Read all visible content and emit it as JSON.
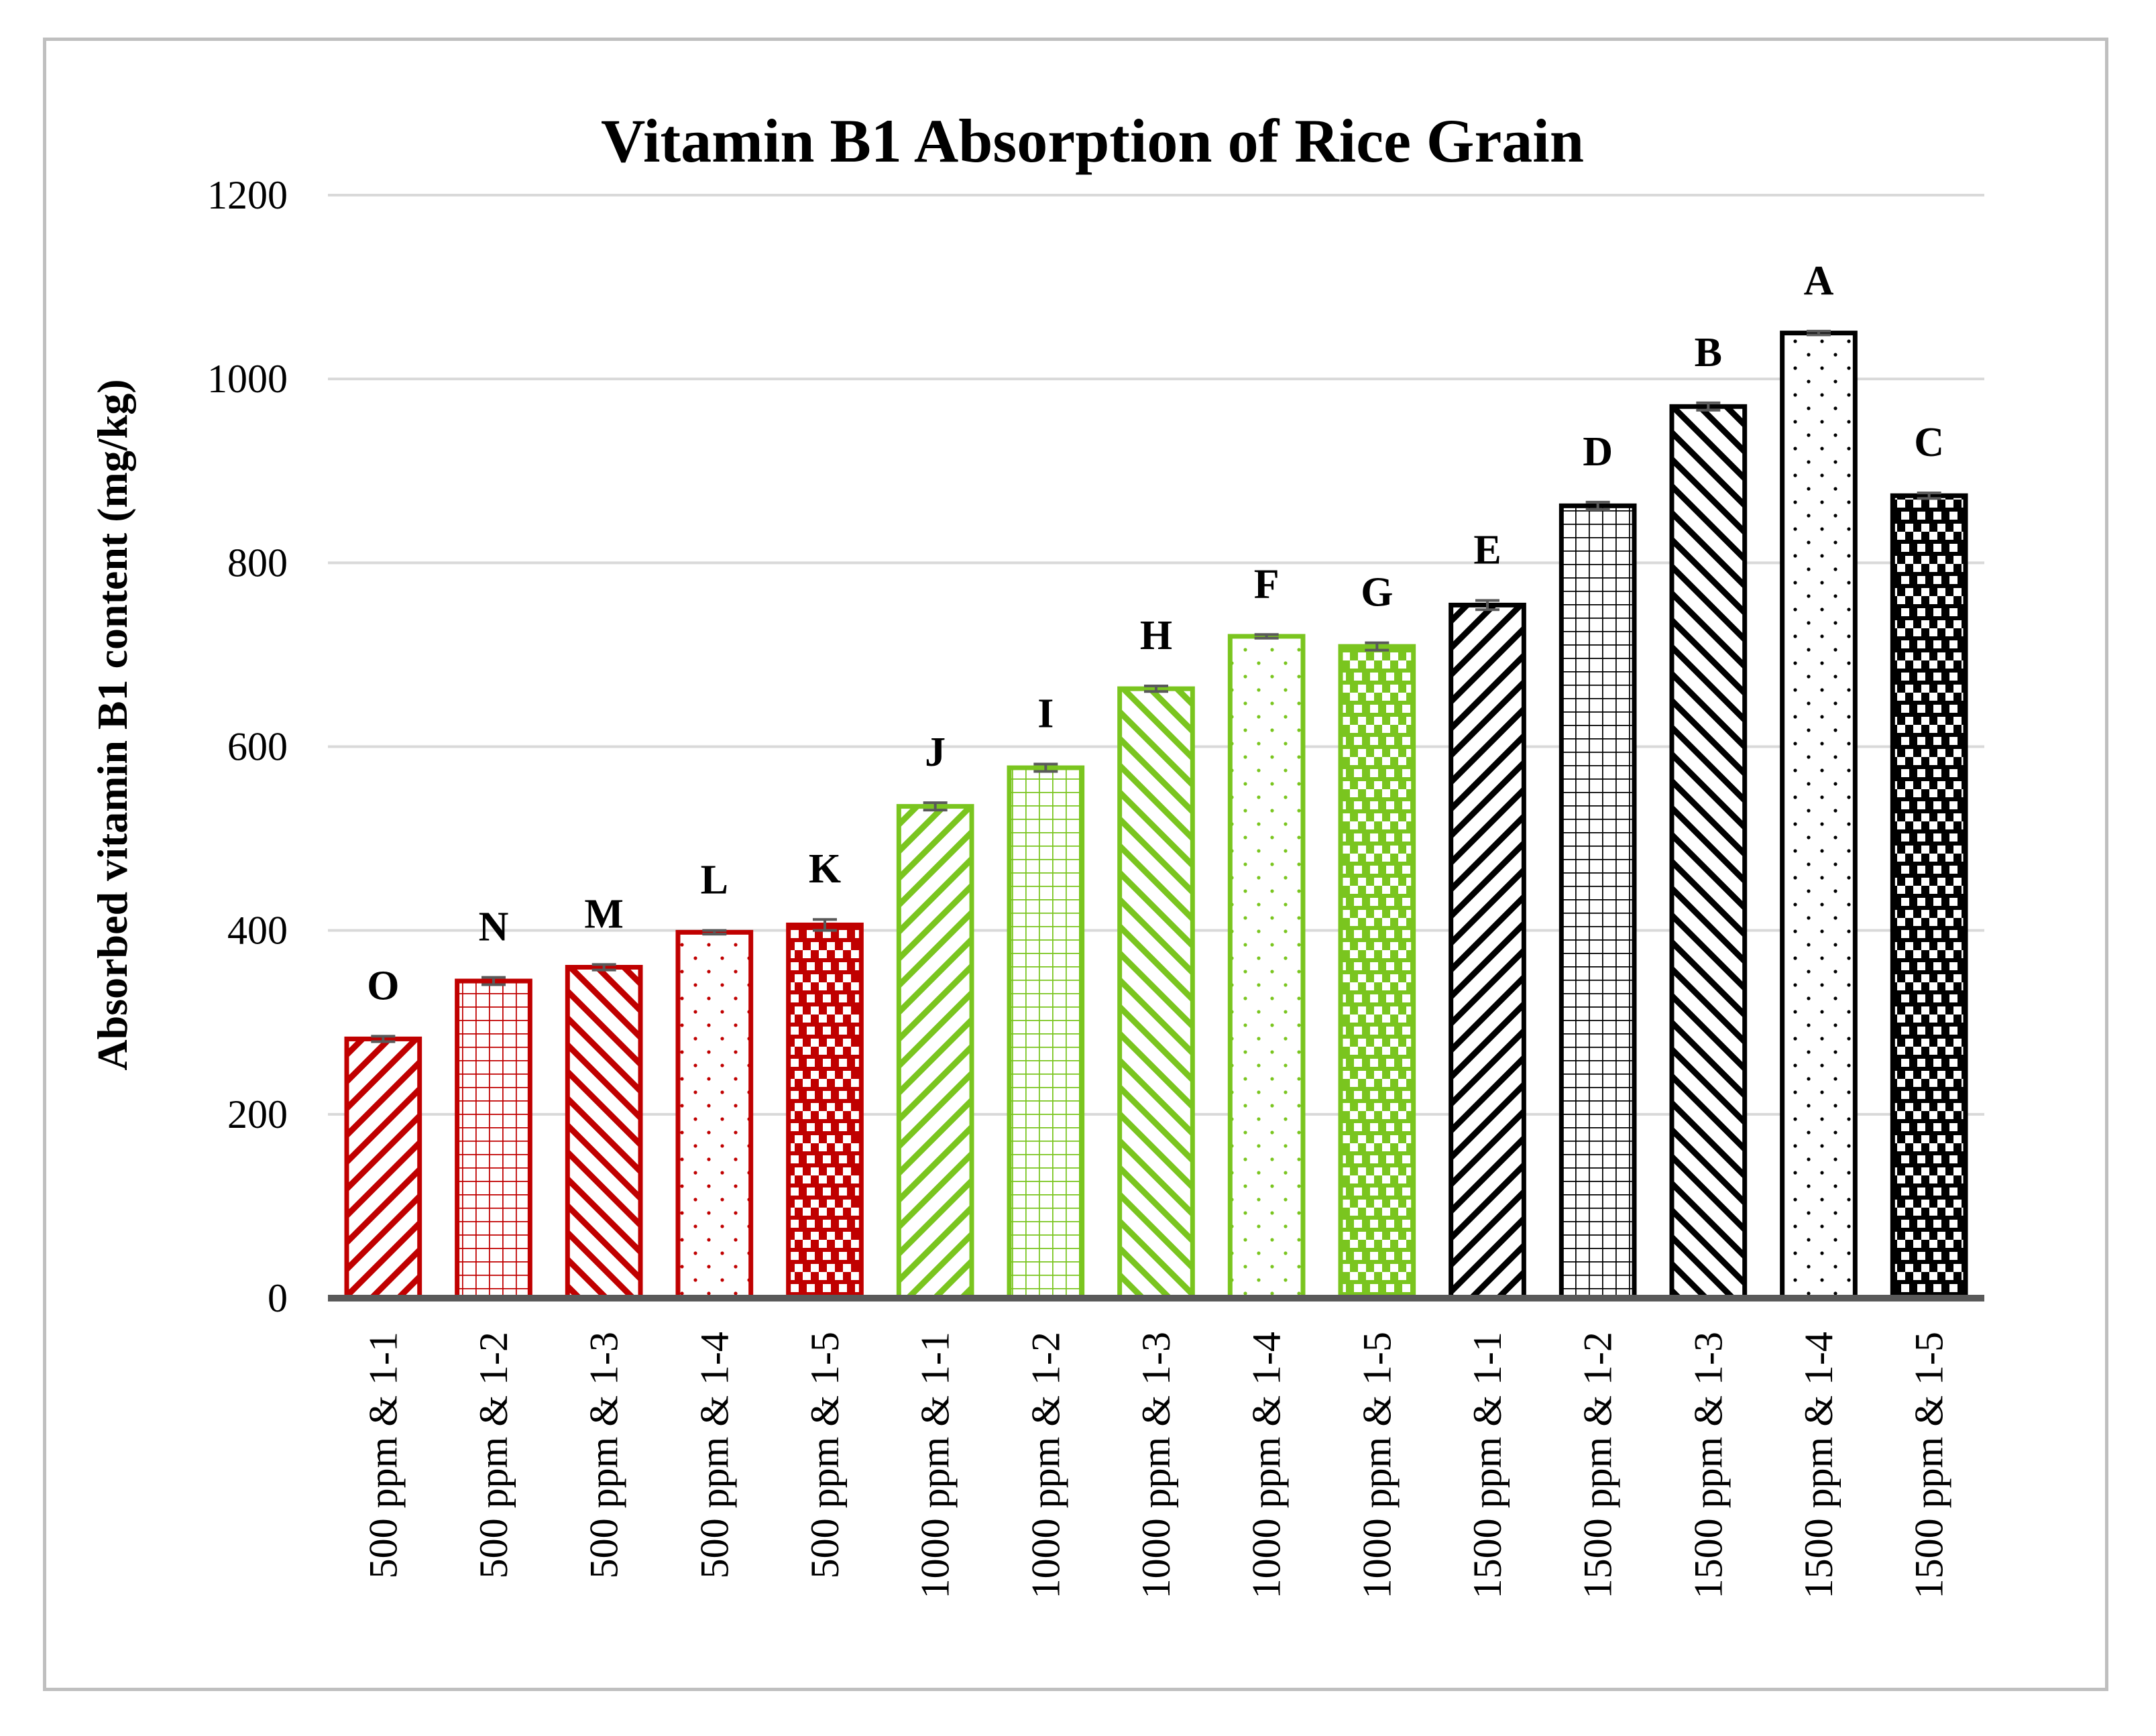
{
  "colors": {
    "red": "#c00000",
    "green": "#7ac51f",
    "black": "#000000",
    "grid": "#d9d9d9",
    "axis": "#595959",
    "errorbar": "#595959"
  },
  "chart_data": {
    "type": "bar",
    "title": "Vitamin B1 Absorption of Rice Grain",
    "xlabel": "",
    "ylabel": "Absorbed vitamin B1 content (mg/kg)",
    "ylim": [
      0,
      1200
    ],
    "yticks": [
      "0",
      "200",
      "400",
      "600",
      "800",
      "1000",
      "1200"
    ],
    "grid": true,
    "categories": [
      "500 ppm & 1-1",
      "500 ppm & 1-2",
      "500 ppm & 1-3",
      "500 ppm & 1-4",
      "500 ppm & 1-5",
      "1000 ppm & 1-1",
      "1000 ppm & 1-2",
      "1000 ppm & 1-3",
      "1000 ppm & 1-4",
      "1000 ppm & 1-5",
      "1500 ppm & 1-1",
      "1500 ppm & 1-2",
      "1500 ppm & 1-3",
      "1500 ppm & 1-4",
      "1500 ppm & 1-5"
    ],
    "values": [
      282,
      345,
      360,
      398,
      406,
      535,
      577,
      663,
      720,
      709,
      754,
      862,
      970,
      1050,
      873
    ],
    "errors": [
      3,
      4,
      3,
      2,
      6,
      4,
      4,
      3,
      2,
      4,
      5,
      4,
      4,
      2,
      3
    ],
    "letters": [
      "O",
      "N",
      "M",
      "L",
      "K",
      "J",
      "I",
      "H",
      "F",
      "G",
      "E",
      "D",
      "B",
      "A",
      "C"
    ],
    "bar_colors": [
      "red",
      "red",
      "red",
      "red",
      "red",
      "green",
      "green",
      "green",
      "green",
      "green",
      "black",
      "black",
      "black",
      "black",
      "black"
    ],
    "bar_patterns": [
      "diag-up",
      "grid",
      "diag-down",
      "dots",
      "check",
      "diag-up",
      "grid",
      "diag-down",
      "dots",
      "check",
      "diag-up",
      "grid",
      "diag-down",
      "dots",
      "check"
    ]
  }
}
